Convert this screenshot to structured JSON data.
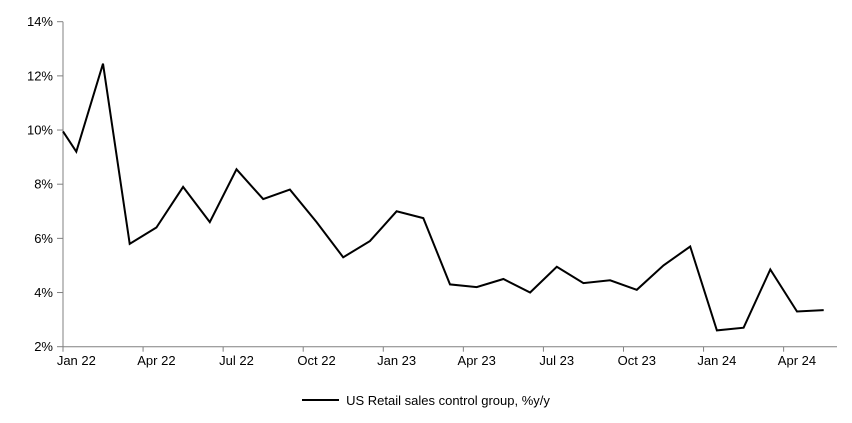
{
  "chart_data": {
    "type": "line",
    "title": "",
    "legend": {
      "label": "US Retail sales control group, %y/y",
      "position": "bottom",
      "line_color": "#000000"
    },
    "x": [
      "Jan 22",
      "Feb 22",
      "Mar 22",
      "Apr 22",
      "May 22",
      "Jun 22",
      "Jul 22",
      "Aug 22",
      "Sep 22",
      "Oct 22",
      "Nov 22",
      "Dec 22",
      "Jan 23",
      "Feb 23",
      "Mar 23",
      "Apr 23",
      "May 23",
      "Jun 23",
      "Jul 23",
      "Aug 23",
      "Sep 23",
      "Oct 23",
      "Nov 23",
      "Dec 23",
      "Jan 24",
      "Feb 24",
      "Mar 24",
      "Apr 24",
      "May 24"
    ],
    "series": [
      {
        "name": "US Retail sales control group, %y/y",
        "color": "#000000",
        "left_edge_value": 9.95,
        "values": [
          9.2,
          12.45,
          5.8,
          6.4,
          7.9,
          6.6,
          8.55,
          7.45,
          7.8,
          6.6,
          5.3,
          5.9,
          7.0,
          6.75,
          4.3,
          4.2,
          4.5,
          4.0,
          4.95,
          4.35,
          4.45,
          4.1,
          5.0,
          5.7,
          2.6,
          2.7,
          4.85,
          3.3,
          3.35
        ]
      }
    ],
    "x_tick_labels": [
      "Jan 22",
      "Apr 22",
      "Jul 22",
      "Oct 22",
      "Jan 23",
      "Apr 23",
      "Jul 23",
      "Oct 23",
      "Jan 24",
      "Apr 24"
    ],
    "x_tick_interval_months": 3,
    "y_ticks": [
      "2%",
      "4%",
      "6%",
      "8%",
      "10%",
      "12%",
      "14%"
    ],
    "y_tick_values": [
      2,
      4,
      6,
      8,
      10,
      12,
      14
    ],
    "ylim": [
      2,
      14
    ],
    "y_unit": "%",
    "grid": false,
    "legend_position": "bottom-center",
    "axis_color": "#808080",
    "text_color": "#000000",
    "background": "#ffffff"
  }
}
